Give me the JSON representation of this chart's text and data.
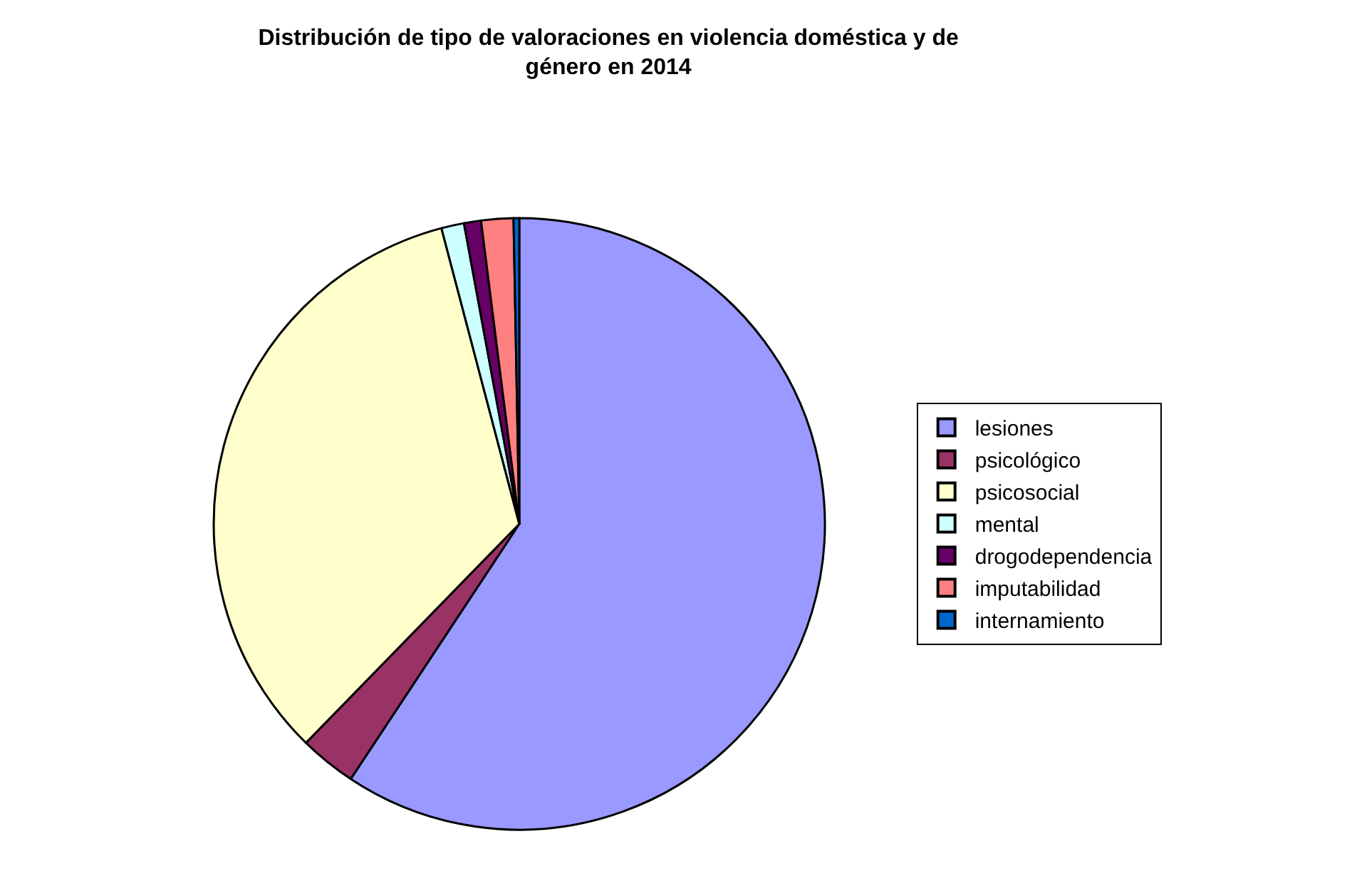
{
  "chart_data": {
    "type": "pie",
    "title": "Distribución de tipo de valoraciones en violencia doméstica y de género en 2014",
    "categories": [
      "lesiones",
      "psicológico",
      "psicosocial",
      "mental",
      "drogodependencia",
      "imputabilidad",
      "internamiento"
    ],
    "values": [
      59.3,
      3.0,
      33.6,
      1.2,
      0.9,
      1.7,
      0.3
    ],
    "colors": [
      "#9999ff",
      "#993366",
      "#ffffcc",
      "#ccffff",
      "#660066",
      "#ff8080",
      "#0066cc"
    ],
    "legend": "right"
  }
}
